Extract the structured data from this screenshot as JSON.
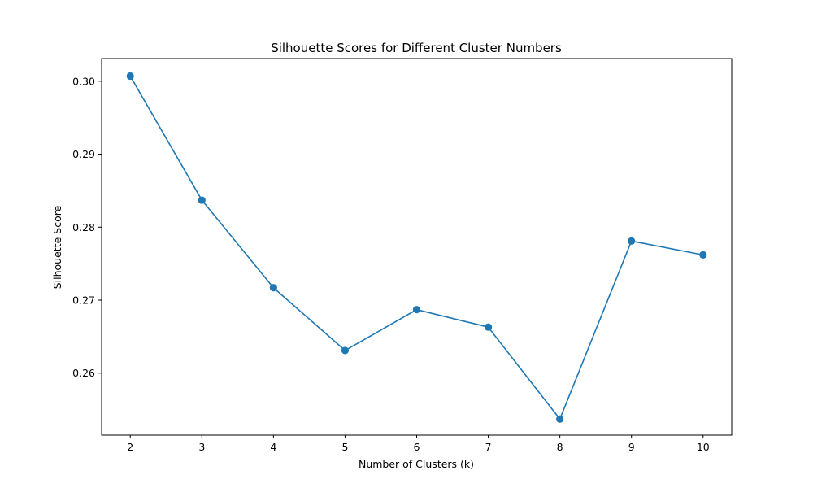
{
  "chart_data": {
    "type": "line",
    "title": "Silhouette Scores for Different Cluster Numbers",
    "xlabel": "Number of Clusters (k)",
    "ylabel": "Silhouette Score",
    "x": [
      2,
      3,
      4,
      5,
      6,
      7,
      8,
      9,
      10
    ],
    "series": [
      {
        "values": [
          0.3007,
          0.2837,
          0.2717,
          0.2631,
          0.2687,
          0.2663,
          0.2537,
          0.2781,
          0.2762
        ],
        "color": "#1f77b4",
        "marker": "circle"
      }
    ],
    "xticks": [
      "2",
      "3",
      "4",
      "5",
      "6",
      "7",
      "8",
      "9",
      "10"
    ],
    "yticks": [
      "0.26",
      "0.27",
      "0.28",
      "0.29",
      "0.30"
    ],
    "xlim": [
      1.6,
      10.4
    ],
    "ylim": [
      0.2515,
      0.3031
    ],
    "grid": false,
    "legend": "none"
  }
}
